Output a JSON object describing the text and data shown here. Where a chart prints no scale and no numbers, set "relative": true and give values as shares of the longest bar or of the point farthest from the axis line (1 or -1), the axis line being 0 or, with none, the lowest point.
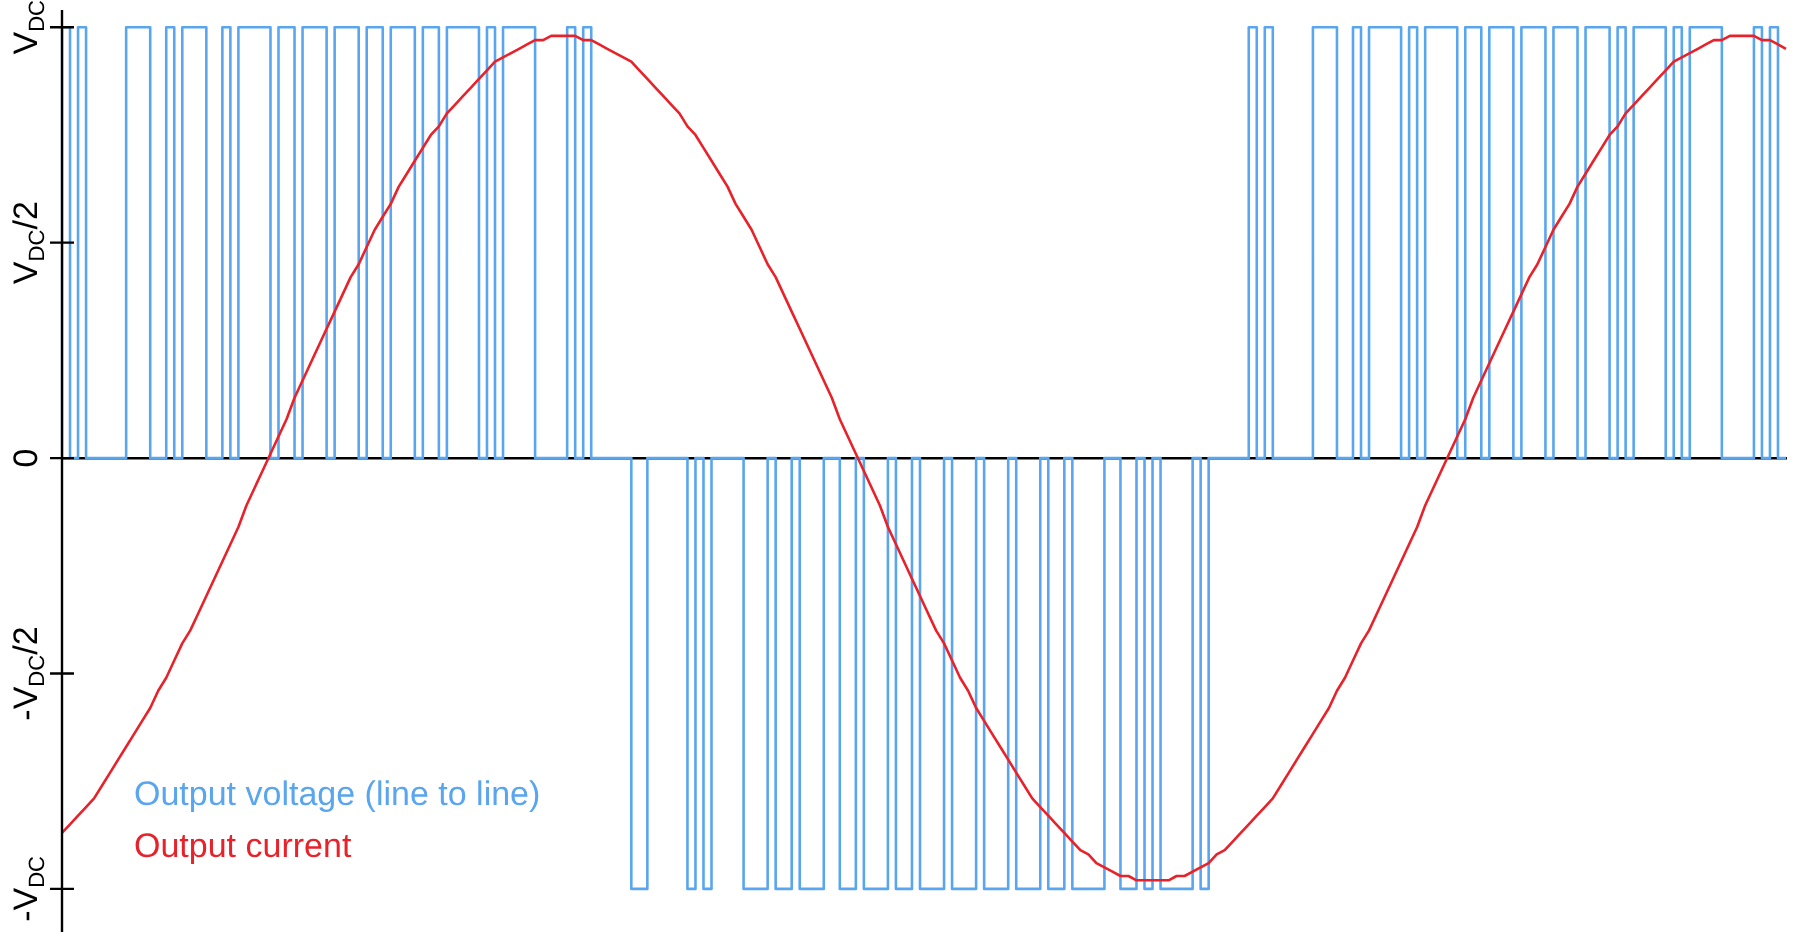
{
  "chart_data": {
    "type": "line",
    "categories": [
      null,
      null,
      null,
      null,
      null,
      null,
      null,
      null,
      null,
      null,
      null,
      null,
      null,
      null,
      null,
      null,
      null,
      null,
      null,
      null,
      null,
      null,
      null,
      null,
      null,
      null,
      null,
      null,
      null,
      null,
      null,
      null,
      null,
      null,
      null,
      null,
      null,
      null,
      null,
      null,
      null,
      null,
      null,
      null,
      null,
      null,
      null,
      null,
      null,
      null,
      null,
      null,
      null,
      null,
      null,
      null,
      null,
      null,
      null,
      null,
      null,
      null,
      null,
      null,
      null,
      null,
      null,
      null,
      null,
      null,
      null,
      null,
      null,
      null,
      null,
      null,
      null,
      null,
      null,
      null,
      null,
      null,
      null,
      null,
      null,
      null,
      null,
      null,
      null,
      null,
      null,
      null,
      null,
      null,
      null,
      null,
      null,
      null,
      null,
      null,
      null,
      null,
      null,
      null,
      null,
      null,
      null,
      null,
      null,
      null,
      null,
      null,
      null,
      null,
      null,
      null,
      null,
      null,
      null,
      null,
      null,
      null,
      null,
      null,
      null,
      null,
      null,
      null,
      null,
      null,
      null,
      null,
      null,
      null,
      null,
      null,
      null,
      null,
      null,
      null,
      null,
      null,
      null,
      null,
      null,
      null,
      null,
      null,
      null,
      null,
      null,
      null,
      null,
      null,
      null,
      null,
      null,
      null,
      null,
      null,
      null,
      null,
      null,
      null,
      null,
      null,
      null,
      null,
      null,
      null,
      null,
      null,
      null,
      null,
      null,
      null,
      null,
      null,
      null,
      null,
      null,
      null,
      null,
      null,
      null,
      null,
      null,
      null,
      null,
      null,
      null,
      null,
      null,
      null,
      null,
      null,
      null,
      null,
      null,
      null,
      null,
      null,
      null,
      null,
      null,
      null,
      null,
      null,
      null,
      null,
      null,
      null,
      null,
      null,
      null,
      null
    ],
    "series": [
      {
        "name": "Output voltage (line to line)",
        "type": "step",
        "color": "#5aa6ee",
        "values": [
          0,
          1,
          0,
          1,
          0,
          0,
          0,
          0,
          0,
          1,
          1,
          1,
          0,
          0,
          1,
          0,
          1,
          1,
          1,
          0,
          0,
          1,
          0,
          1,
          1,
          1,
          1,
          0,
          1,
          1,
          0,
          1,
          1,
          1,
          0,
          1,
          1,
          1,
          0,
          1,
          1,
          0,
          1,
          1,
          1,
          0,
          1,
          1,
          0,
          1,
          1,
          1,
          1,
          0,
          1,
          0,
          1,
          1,
          1,
          1,
          0,
          0,
          0,
          0,
          1,
          0,
          1,
          0,
          0,
          0,
          0,
          0,
          -1,
          -1,
          0,
          0,
          0,
          0,
          0,
          -1,
          0,
          -1,
          0,
          0,
          0,
          0,
          -1,
          -1,
          -1,
          0,
          -1,
          -1,
          0,
          -1,
          -1,
          -1,
          0,
          0,
          -1,
          -1,
          0,
          -1,
          -1,
          -1,
          0,
          -1,
          -1,
          0,
          -1,
          -1,
          -1,
          0,
          -1,
          -1,
          -1,
          0,
          -1,
          -1,
          -1,
          0,
          -1,
          -1,
          -1,
          0,
          -1,
          -1,
          0,
          -1,
          -1,
          -1,
          -1,
          0,
          0,
          -1,
          -1,
          0,
          -1,
          0,
          -1,
          -1,
          -1,
          -1,
          0,
          -1,
          0,
          0,
          0,
          0,
          0,
          1,
          0,
          1,
          0,
          0,
          0,
          0,
          0,
          1,
          1,
          1,
          0,
          0,
          1,
          0,
          1,
          1,
          1,
          1,
          0,
          1,
          0,
          1,
          1,
          1,
          1,
          0,
          1,
          1,
          0,
          1,
          1,
          1,
          0,
          1,
          1,
          1,
          0,
          1,
          1,
          1,
          0,
          1,
          1,
          1,
          0,
          1,
          0,
          1,
          1,
          1,
          1,
          0,
          1,
          0,
          1,
          1,
          1,
          1,
          0,
          0,
          0,
          0,
          1,
          0,
          1,
          0
        ]
      },
      {
        "name": "Output current",
        "type": "line",
        "color": "#e8222a",
        "values": [
          -0.87,
          -0.85,
          -0.83,
          -0.81,
          -0.79,
          -0.76,
          -0.73,
          -0.7,
          -0.67,
          -0.64,
          -0.61,
          -0.58,
          -0.54,
          -0.51,
          -0.47,
          -0.43,
          -0.4,
          -0.36,
          -0.32,
          -0.28,
          -0.24,
          -0.2,
          -0.16,
          -0.11,
          -0.07,
          -0.03,
          0.01,
          0.05,
          0.09,
          0.14,
          0.18,
          0.22,
          0.26,
          0.3,
          0.34,
          0.38,
          0.42,
          0.45,
          0.49,
          0.53,
          0.56,
          0.59,
          0.63,
          0.66,
          0.69,
          0.72,
          0.75,
          0.77,
          0.8,
          0.82,
          0.84,
          0.86,
          0.88,
          0.9,
          0.92,
          0.93,
          0.94,
          0.95,
          0.96,
          0.97,
          0.97,
          0.98,
          0.98,
          0.98,
          0.98,
          0.97,
          0.97,
          0.96,
          0.95,
          0.94,
          0.93,
          0.92,
          0.9,
          0.88,
          0.86,
          0.84,
          0.82,
          0.8,
          0.77,
          0.75,
          0.72,
          0.69,
          0.66,
          0.63,
          0.59,
          0.56,
          0.53,
          0.49,
          0.45,
          0.42,
          0.38,
          0.34,
          0.3,
          0.26,
          0.22,
          0.18,
          0.14,
          0.09,
          0.05,
          0.01,
          -0.03,
          -0.07,
          -0.11,
          -0.16,
          -0.2,
          -0.24,
          -0.28,
          -0.32,
          -0.36,
          -0.4,
          -0.43,
          -0.47,
          -0.51,
          -0.54,
          -0.58,
          -0.61,
          -0.64,
          -0.67,
          -0.7,
          -0.73,
          -0.76,
          -0.79,
          -0.81,
          -0.83,
          -0.85,
          -0.87,
          -0.89,
          -0.91,
          -0.92,
          -0.94,
          -0.95,
          -0.96,
          -0.97,
          -0.97,
          -0.98,
          -0.98,
          -0.98,
          -0.98,
          -0.98,
          -0.97,
          -0.97,
          -0.96,
          -0.95,
          -0.94,
          -0.92,
          -0.91,
          -0.89,
          -0.87,
          -0.85,
          -0.83,
          -0.81,
          -0.79,
          -0.76,
          -0.73,
          -0.7,
          -0.67,
          -0.64,
          -0.61,
          -0.58,
          -0.54,
          -0.51,
          -0.47,
          -0.43,
          -0.4,
          -0.36,
          -0.32,
          -0.28,
          -0.24,
          -0.2,
          -0.16,
          -0.11,
          -0.07,
          -0.03,
          0.01,
          0.05,
          0.09,
          0.14,
          0.18,
          0.22,
          0.26,
          0.3,
          0.34,
          0.38,
          0.42,
          0.45,
          0.49,
          0.53,
          0.56,
          0.59,
          0.63,
          0.66,
          0.69,
          0.72,
          0.75,
          0.77,
          0.8,
          0.82,
          0.84,
          0.86,
          0.88,
          0.9,
          0.92,
          0.93,
          0.94,
          0.95,
          0.96,
          0.97,
          0.97,
          0.98,
          0.98,
          0.98,
          0.98,
          0.97,
          0.97,
          0.96,
          0.95
        ]
      }
    ],
    "relative": true,
    "annotations": [
      "V$_{DC}$",
      "V$_{DC}$/2",
      "0",
      "-V$_{DC}$/2",
      "-V$_{DC}$"
    ],
    "legend": "bottom left"
  }
}
